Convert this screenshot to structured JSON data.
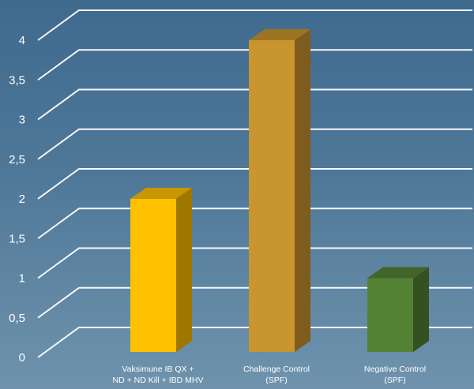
{
  "chart_data": {
    "type": "bar",
    "categories": [
      [
        "Vaksimune IB QX +",
        "ND + ND Kill + IBD MHV"
      ],
      [
        "Challenge Control",
        "(SPF)"
      ],
      [
        "Negative Control",
        "(SPF)"
      ]
    ],
    "values": [
      2.0,
      4.0,
      1.0
    ],
    "colors": [
      "#ffc000",
      "#c9952e",
      "#548235"
    ],
    "yticks": [
      "0",
      "0,5",
      "1",
      "1,5",
      "2",
      "2,5",
      "3",
      "3,5",
      "4"
    ],
    "ylim": [
      0,
      4
    ],
    "grid": true,
    "legend": "none",
    "style": "3d-bar"
  }
}
